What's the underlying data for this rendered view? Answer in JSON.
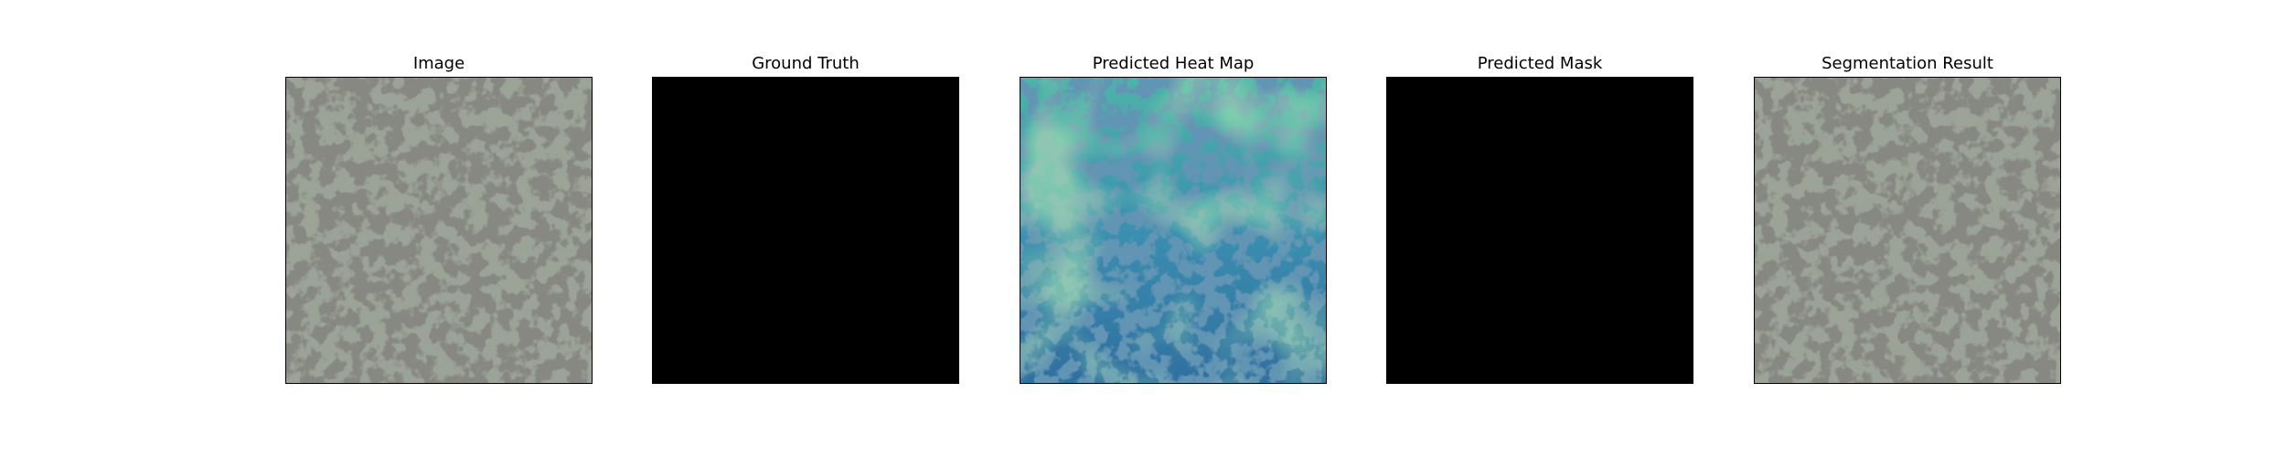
{
  "panels": [
    {
      "title": "Image",
      "kind": "texture-image"
    },
    {
      "title": "Ground Truth",
      "kind": "empty-mask"
    },
    {
      "title": "Predicted Heat Map",
      "kind": "heatmap-overlay"
    },
    {
      "title": "Predicted Mask",
      "kind": "empty-mask"
    },
    {
      "title": "Segmentation Result",
      "kind": "texture-image"
    }
  ],
  "colors": {
    "texture_background": "#9aa295",
    "texture_spots": "#3c3d37",
    "mask_fill": "#000000",
    "heatmap_low": "#2f6fa0",
    "heatmap_mid": "#3fa3b0",
    "heatmap_high": "#7fd16a"
  }
}
